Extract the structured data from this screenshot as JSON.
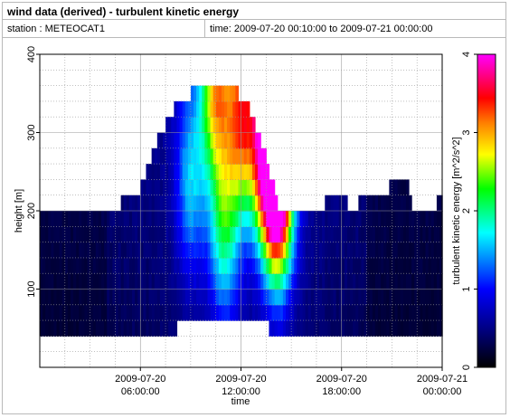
{
  "header": {
    "title": "wind data (derived) - turbulent kinetic energy",
    "station": "station : METEOCAT1",
    "time_range": "time: 2009-07-20 00:10:00 to 2009-07-21 00:00:00"
  },
  "chart_data": {
    "type": "heatmap",
    "title": "wind data (derived) - turbulent kinetic energy",
    "xlabel": "time",
    "ylabel": "height [m]",
    "colorbar_label": "turbulent kinetic energy [m^2/s^2]",
    "xlim": [
      "2009-07-20 00:00:00",
      "2009-07-21 00:00:00"
    ],
    "ylim": [
      0,
      400
    ],
    "clim": [
      0,
      4
    ],
    "x_ticks": [
      {
        "line1": "2009-07-20",
        "line2": "06:00:00",
        "hour": 6
      },
      {
        "line1": "2009-07-20",
        "line2": "12:00:00",
        "hour": 12
      },
      {
        "line1": "2009-07-20",
        "line2": "18:00:00",
        "hour": 18
      },
      {
        "line1": "2009-07-21",
        "line2": "00:00:00",
        "hour": 24
      }
    ],
    "y_ticks": [
      100,
      200,
      300,
      400
    ],
    "colorbar_ticks": [
      0,
      1,
      2,
      3,
      4
    ],
    "grid": true,
    "colorscale": [
      "#000000",
      "#000080",
      "#0000ff",
      "#00ffff",
      "#00ff00",
      "#ffff00",
      "#ff0000",
      "#ff00ff"
    ],
    "time_step_hours": 0.1667,
    "height_step_m": 20,
    "profile": {
      "hours": [
        0.1,
        0.7,
        1.0,
        2.7,
        3.0,
        4.5,
        4.8,
        5.0,
        6.0,
        7.0,
        7.7,
        8.2,
        9.0,
        9.7,
        10.2,
        10.8,
        11.6,
        12.2,
        12.7,
        13.2,
        13.7,
        14.2,
        14.8,
        15.5,
        16.2,
        17.0,
        17.8,
        18.3,
        18.8,
        19.2,
        20.2,
        20.8,
        21.3,
        21.9,
        22.3,
        23.0,
        23.6,
        24.0
      ],
      "bottom_m": [
        40,
        40,
        40,
        40,
        40,
        40,
        40,
        40,
        40,
        40,
        40,
        50,
        50,
        50,
        50,
        50,
        50,
        50,
        50,
        50,
        50,
        40,
        40,
        40,
        40,
        40,
        40,
        40,
        40,
        40,
        40,
        40,
        40,
        40,
        40,
        40,
        40,
        40
      ],
      "top_m": [
        205,
        200,
        195,
        195,
        190,
        195,
        210,
        220,
        230,
        290,
        320,
        335,
        350,
        355,
        360,
        360,
        355,
        340,
        320,
        290,
        250,
        205,
        205,
        205,
        205,
        210,
        215,
        210,
        200,
        215,
        225,
        230,
        245,
        235,
        195,
        200,
        205,
        225
      ]
    },
    "tke_maxima": [
      {
        "hour": 10.5,
        "height_m": 360,
        "tke": 2.6
      },
      {
        "hour": 12.0,
        "height_m": 320,
        "tke": 2.7
      },
      {
        "hour": 13.3,
        "height_m": 300,
        "tke": 2.4
      },
      {
        "hour": 14.0,
        "height_m": 260,
        "tke": 3.2
      },
      {
        "hour": 14.3,
        "height_m": 230,
        "tke": 2.8
      },
      {
        "hour": 11.0,
        "height_m": 180,
        "tke": 1.6
      },
      {
        "hour": 9.0,
        "height_m": 240,
        "tke": 1.2
      }
    ]
  }
}
